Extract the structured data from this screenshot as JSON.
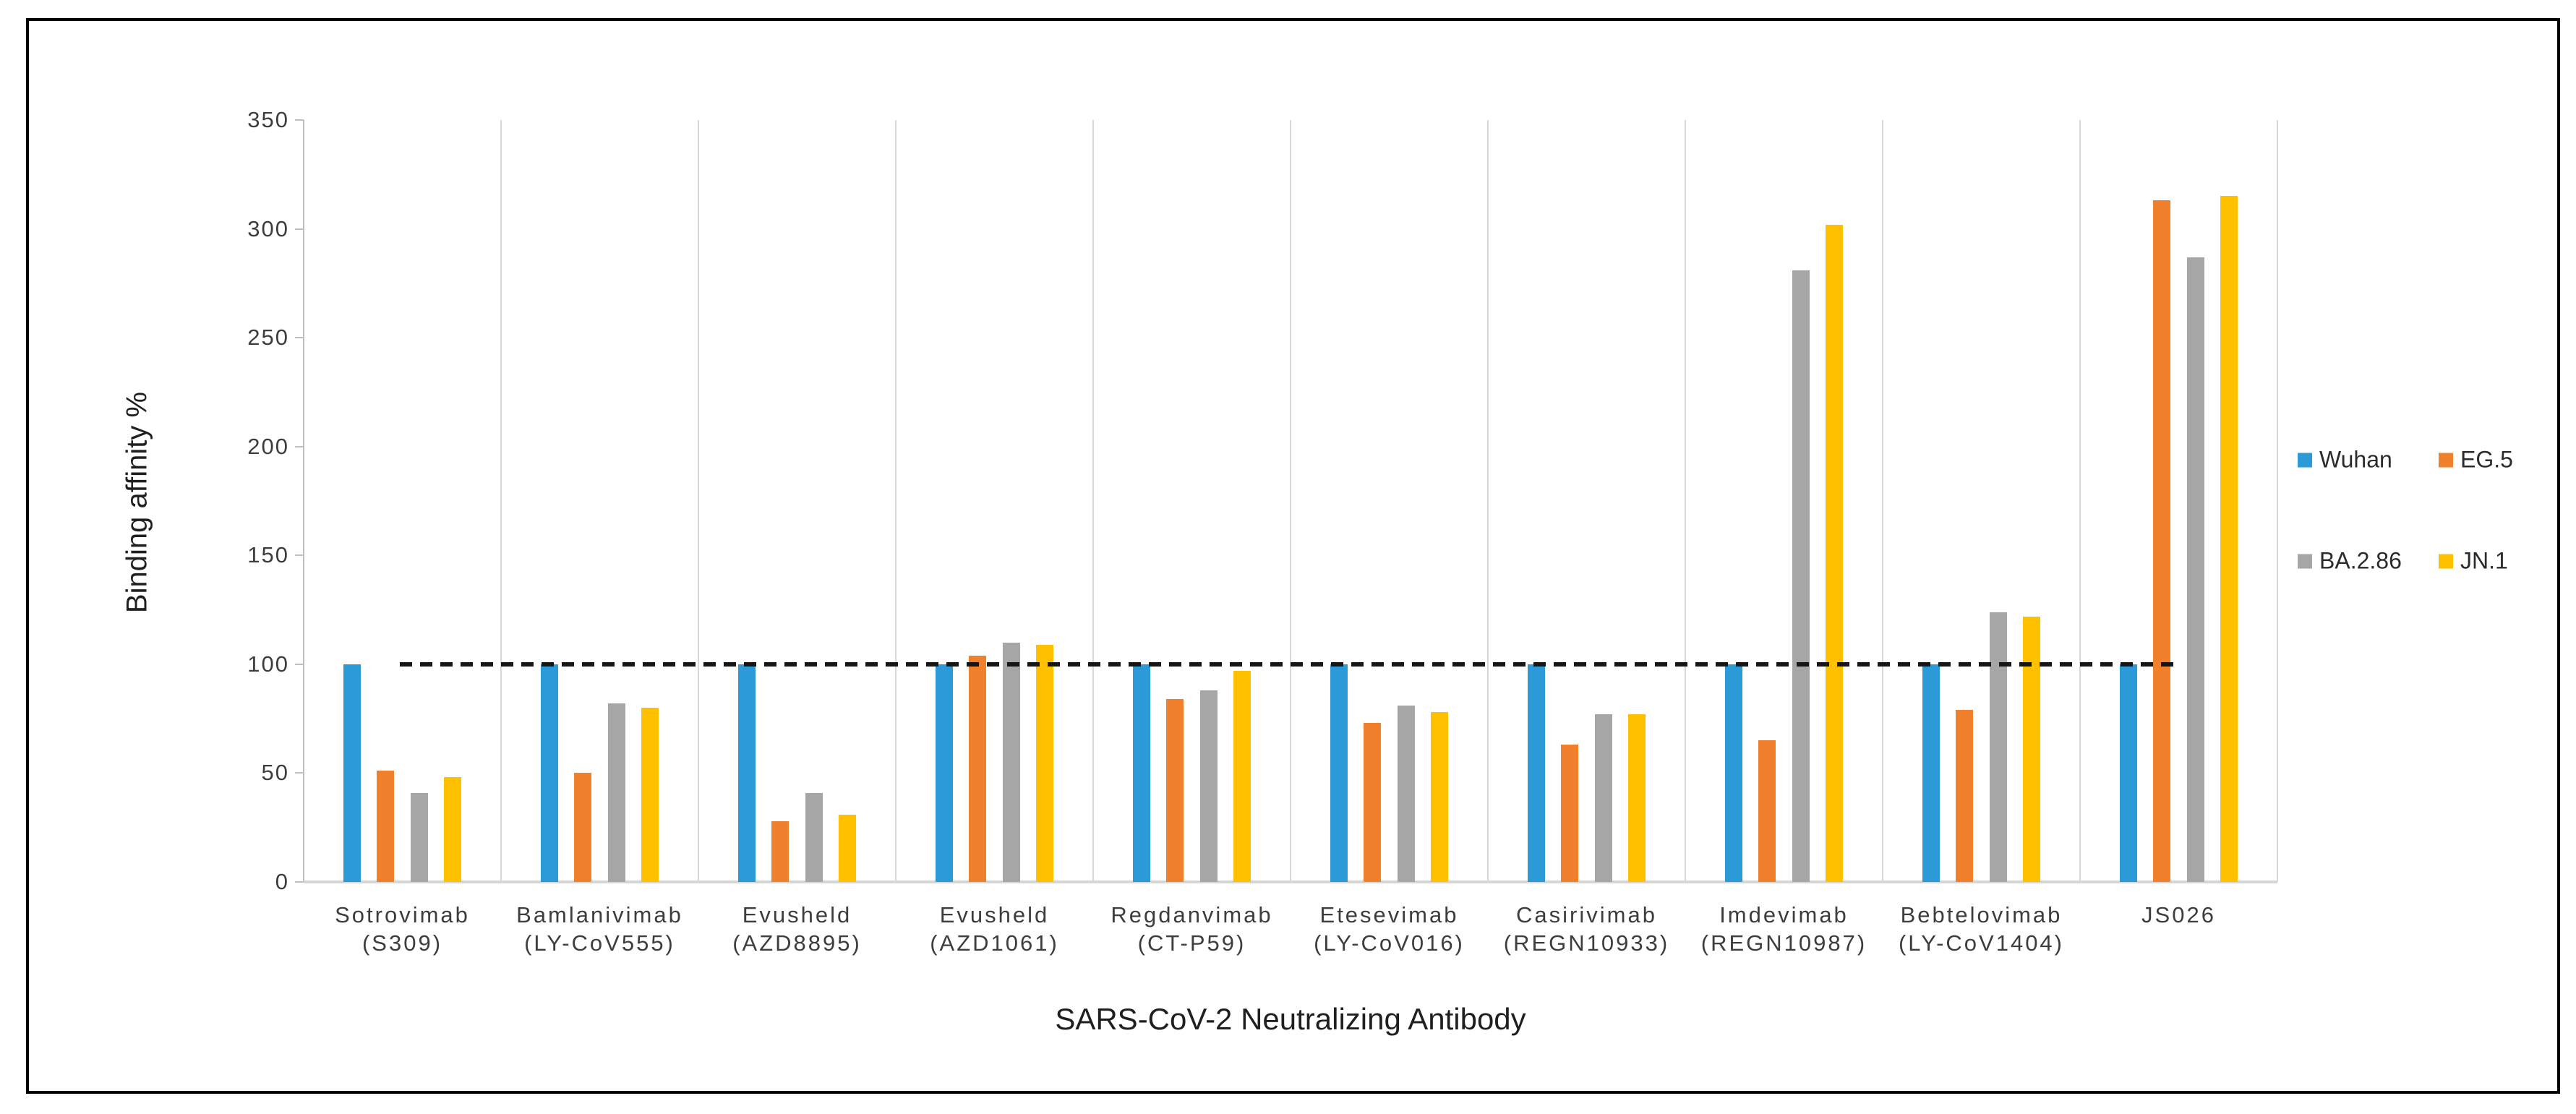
{
  "chart_data": {
    "type": "bar",
    "title": "",
    "xlabel": "SARS-CoV-2 Neutralizing Antibody",
    "ylabel": "Binding affinity %",
    "ylim": [
      0,
      350
    ],
    "yticks": [
      0,
      50,
      100,
      150,
      200,
      250,
      300,
      350
    ],
    "grid": "vertical category separators only",
    "legend_position": "right",
    "reference_line": {
      "value": 100,
      "style": "dashed",
      "color": "#161616"
    },
    "categories": [
      {
        "name": "Sotrovimab",
        "code": "(S309)"
      },
      {
        "name": "Bamlanivimab",
        "code": "(LY-CoV555)"
      },
      {
        "name": "Evusheld",
        "code": "(AZD8895)"
      },
      {
        "name": "Evusheld",
        "code": "(AZD1061)"
      },
      {
        "name": "Regdanvimab",
        "code": "(CT-P59)"
      },
      {
        "name": "Etesevimab",
        "code": "(LY-CoV016)"
      },
      {
        "name": "Casirivimab",
        "code": "(REGN10933)"
      },
      {
        "name": "Imdevimab",
        "code": "(REGN10987)"
      },
      {
        "name": "Bebtelovimab",
        "code": "(LY-CoV1404)"
      },
      {
        "name": "JS026",
        "code": ""
      }
    ],
    "series": [
      {
        "name": "Wuhan",
        "color": "#2B9AD6",
        "values": [
          100,
          100,
          100,
          100,
          100,
          100,
          100,
          100,
          100,
          100
        ]
      },
      {
        "name": "EG.5",
        "color": "#F0802C",
        "values": [
          51,
          50,
          28,
          104,
          84,
          73,
          63,
          65,
          79,
          313
        ]
      },
      {
        "name": "BA.2.86",
        "color": "#A6A6A6",
        "values": [
          41,
          82,
          41,
          110,
          88,
          81,
          77,
          281,
          124,
          287
        ]
      },
      {
        "name": "JN.1",
        "color": "#FFC000",
        "values": [
          48,
          80,
          31,
          109,
          97,
          78,
          77,
          302,
          122,
          315
        ]
      }
    ],
    "legend_rows": [
      [
        "Wuhan",
        "EG.5"
      ],
      [
        "BA.2.86",
        "JN.1"
      ]
    ]
  }
}
